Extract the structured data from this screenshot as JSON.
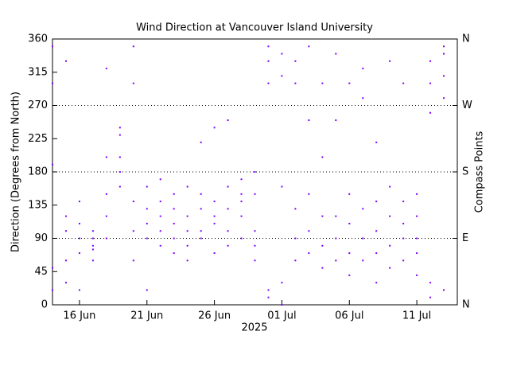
{
  "chart_data": {
    "type": "scatter",
    "title": "Wind Direction at Vancouver Island University",
    "ylabel": "Direction (Degrees from North)",
    "y2label": "Compass Points",
    "xlabel": "2025",
    "xlim": [
      "2025-06-14",
      "2025-07-14"
    ],
    "xticks": [
      {
        "value": "2025-06-16",
        "label": "16 Jun"
      },
      {
        "value": "2025-06-21",
        "label": "21 Jun"
      },
      {
        "value": "2025-06-26",
        "label": "26 Jun"
      },
      {
        "value": "2025-07-01",
        "label": "01 Jul"
      },
      {
        "value": "2025-07-06",
        "label": "06 Jul"
      },
      {
        "value": "2025-07-11",
        "label": "11 Jul"
      }
    ],
    "ylim": [
      0,
      360
    ],
    "yticks": [
      0,
      45,
      90,
      135,
      180,
      225,
      270,
      315,
      360
    ],
    "y2lim": [
      0,
      360
    ],
    "y2ticks": [
      {
        "value": 0,
        "label": "N"
      },
      {
        "value": 90,
        "label": "E"
      },
      {
        "value": 180,
        "label": "S"
      },
      {
        "value": 270,
        "label": "W"
      },
      {
        "value": 360,
        "label": "N"
      }
    ],
    "grid_lines": [
      90,
      180,
      270
    ],
    "series": [
      {
        "color": "#7f00ff",
        "x": [
          "2025-06-14",
          "2025-06-14",
          "2025-06-14",
          "2025-06-14",
          "2025-06-14",
          "2025-06-15",
          "2025-06-15",
          "2025-06-15",
          "2025-06-15",
          "2025-06-15",
          "2025-06-16",
          "2025-06-16",
          "2025-06-16",
          "2025-06-16",
          "2025-06-16",
          "2025-06-17",
          "2025-06-17",
          "2025-06-17",
          "2025-06-17",
          "2025-06-17",
          "2025-06-18",
          "2025-06-18",
          "2025-06-18",
          "2025-06-18",
          "2025-06-18",
          "2025-06-19",
          "2025-06-19",
          "2025-06-19",
          "2025-06-19",
          "2025-06-19",
          "2025-06-20",
          "2025-06-20",
          "2025-06-20",
          "2025-06-20",
          "2025-06-20",
          "2025-06-21",
          "2025-06-21",
          "2025-06-21",
          "2025-06-21",
          "2025-06-21",
          "2025-06-22",
          "2025-06-22",
          "2025-06-22",
          "2025-06-22",
          "2025-06-22",
          "2025-06-23",
          "2025-06-23",
          "2025-06-23",
          "2025-06-23",
          "2025-06-23",
          "2025-06-24",
          "2025-06-24",
          "2025-06-24",
          "2025-06-24",
          "2025-06-24",
          "2025-06-25",
          "2025-06-25",
          "2025-06-25",
          "2025-06-25",
          "2025-06-25",
          "2025-06-26",
          "2025-06-26",
          "2025-06-26",
          "2025-06-26",
          "2025-06-26",
          "2025-06-27",
          "2025-06-27",
          "2025-06-27",
          "2025-06-27",
          "2025-06-27",
          "2025-06-28",
          "2025-06-28",
          "2025-06-28",
          "2025-06-28",
          "2025-06-28",
          "2025-06-29",
          "2025-06-29",
          "2025-06-29",
          "2025-06-29",
          "2025-06-29",
          "2025-06-30",
          "2025-06-30",
          "2025-06-30",
          "2025-06-30",
          "2025-06-30",
          "2025-07-01",
          "2025-07-01",
          "2025-07-01",
          "2025-07-01",
          "2025-07-01",
          "2025-07-02",
          "2025-07-02",
          "2025-07-02",
          "2025-07-02",
          "2025-07-02",
          "2025-07-03",
          "2025-07-03",
          "2025-07-03",
          "2025-07-03",
          "2025-07-03",
          "2025-07-04",
          "2025-07-04",
          "2025-07-04",
          "2025-07-04",
          "2025-07-04",
          "2025-07-05",
          "2025-07-05",
          "2025-07-05",
          "2025-07-05",
          "2025-07-05",
          "2025-07-06",
          "2025-07-06",
          "2025-07-06",
          "2025-07-06",
          "2025-07-06",
          "2025-07-07",
          "2025-07-07",
          "2025-07-07",
          "2025-07-07",
          "2025-07-07",
          "2025-07-08",
          "2025-07-08",
          "2025-07-08",
          "2025-07-08",
          "2025-07-08",
          "2025-07-09",
          "2025-07-09",
          "2025-07-09",
          "2025-07-09",
          "2025-07-09",
          "2025-07-10",
          "2025-07-10",
          "2025-07-10",
          "2025-07-10",
          "2025-07-10",
          "2025-07-11",
          "2025-07-11",
          "2025-07-11",
          "2025-07-11",
          "2025-07-11",
          "2025-07-12",
          "2025-07-12",
          "2025-07-12",
          "2025-07-12",
          "2025-07-12",
          "2025-07-13",
          "2025-07-13",
          "2025-07-13",
          "2025-07-13",
          "2025-07-13"
        ],
        "values": [
          190,
          50,
          20,
          300,
          350,
          100,
          60,
          30,
          120,
          330,
          90,
          70,
          110,
          140,
          20,
          80,
          100,
          60,
          90,
          75,
          150,
          200,
          120,
          320,
          90,
          200,
          230,
          180,
          240,
          160,
          60,
          100,
          140,
          300,
          350,
          110,
          90,
          160,
          20,
          130,
          100,
          140,
          170,
          80,
          120,
          90,
          130,
          150,
          70,
          110,
          80,
          120,
          160,
          100,
          60,
          100,
          130,
          90,
          150,
          220,
          110,
          140,
          70,
          240,
          120,
          130,
          160,
          100,
          80,
          250,
          120,
          150,
          170,
          90,
          140,
          100,
          80,
          150,
          60,
          180,
          20,
          330,
          350,
          10,
          300,
          340,
          310,
          0,
          30,
          160,
          90,
          130,
          60,
          330,
          300,
          100,
          70,
          150,
          350,
          250,
          80,
          50,
          120,
          300,
          200,
          120,
          90,
          60,
          340,
          250,
          110,
          70,
          150,
          300,
          40,
          90,
          130,
          60,
          320,
          280,
          100,
          140,
          70,
          30,
          220,
          120,
          80,
          160,
          330,
          50,
          110,
          60,
          140,
          90,
          300,
          90,
          70,
          120,
          40,
          150,
          30,
          330,
          300,
          10,
          260,
          350,
          310,
          280,
          20,
          340
        ]
      }
    ]
  }
}
